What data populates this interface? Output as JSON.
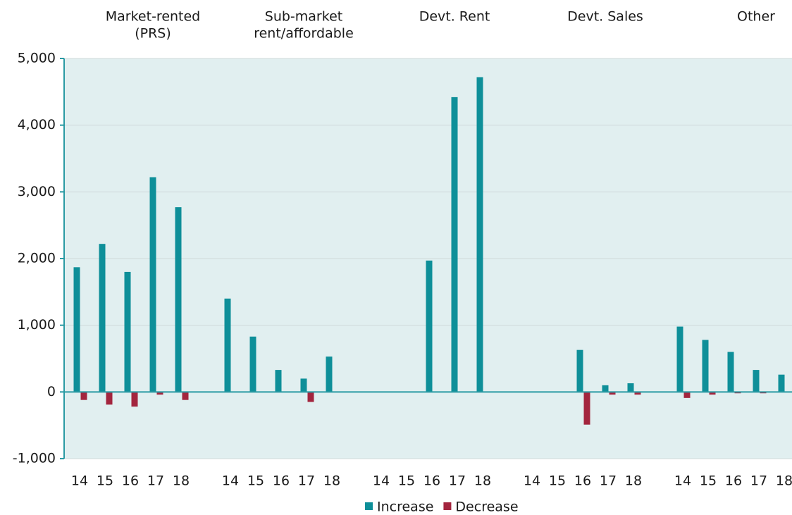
{
  "chart_data": {
    "type": "bar",
    "groups": [
      {
        "label": [
          "Market-rented",
          "(PRS)"
        ]
      },
      {
        "label": [
          "Sub-market",
          "rent/affordable"
        ]
      },
      {
        "label": [
          "Devt. Rent"
        ]
      },
      {
        "label": [
          "Devt. Sales"
        ]
      },
      {
        "label": [
          "Other"
        ]
      }
    ],
    "categories": [
      "14",
      "15",
      "16",
      "17",
      "18",
      "14",
      "15",
      "16",
      "17",
      "18",
      "14",
      "15",
      "16",
      "17",
      "18",
      "14",
      "15",
      "16",
      "17",
      "18",
      "14",
      "15",
      "16",
      "17",
      "18"
    ],
    "series": [
      {
        "name": "Increase",
        "color": "#0e8f99",
        "values": [
          1870,
          2220,
          1800,
          3220,
          2770,
          1400,
          830,
          330,
          200,
          530,
          0,
          0,
          1970,
          4420,
          4720,
          0,
          0,
          630,
          100,
          130,
          980,
          780,
          600,
          330,
          260
        ]
      },
      {
        "name": "Decrease",
        "color": "#a3253e",
        "values": [
          -120,
          -190,
          -220,
          -40,
          -120,
          0,
          0,
          0,
          -150,
          0,
          0,
          0,
          0,
          0,
          0,
          0,
          0,
          -490,
          -40,
          -40,
          -90,
          -40,
          -20,
          -20,
          0
        ]
      }
    ],
    "ylim": [
      -1000,
      5000
    ],
    "yticks": [
      {
        "value": -1000,
        "label": "-1,000"
      },
      0,
      {
        "value": 1000,
        "label": "1,000"
      },
      {
        "value": 2000,
        "label": "2,000"
      },
      {
        "value": 3000,
        "label": "3,000"
      },
      {
        "value": 4000,
        "label": "4,000"
      },
      {
        "value": 5000,
        "label": "5,000"
      }
    ],
    "grid": true,
    "legend": "bottom"
  }
}
